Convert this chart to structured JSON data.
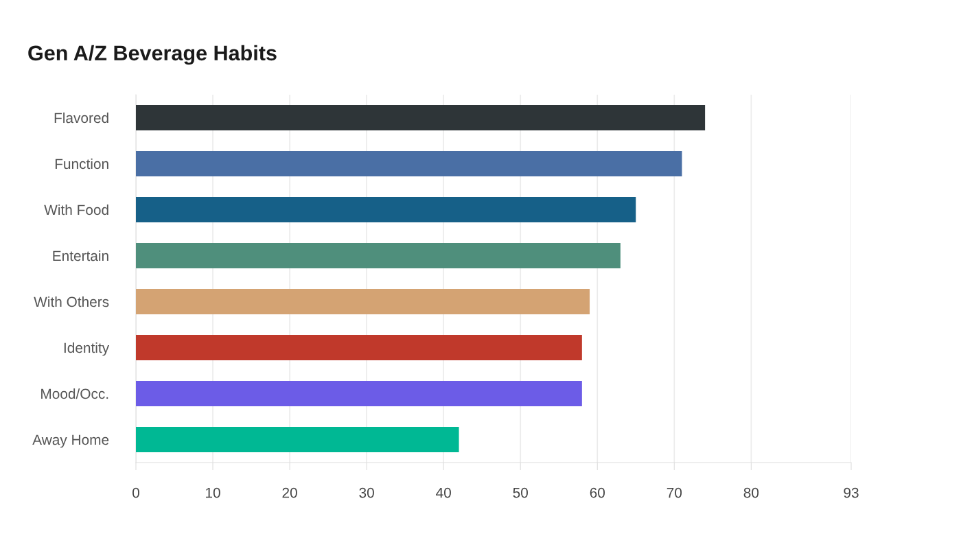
{
  "chart_data": {
    "type": "bar",
    "orientation": "horizontal",
    "title": "Gen A/Z Beverage Habits",
    "categories": [
      "Flavored",
      "Function",
      "With Food",
      "Entertain",
      "With Others",
      "Identity",
      "Mood/Occ.",
      "Away Home"
    ],
    "values": [
      74,
      71,
      65,
      63,
      59,
      58,
      58,
      42
    ],
    "colors": [
      "#2e3538",
      "#4a6fa5",
      "#166088",
      "#4f8f7c",
      "#d4a373",
      "#c0392b",
      "#6c5ce7",
      "#00b894"
    ],
    "xlim": [
      0,
      93
    ],
    "xticks": [
      0,
      10,
      20,
      30,
      40,
      50,
      60,
      70,
      80,
      93
    ],
    "grid": "x",
    "legend": false
  }
}
